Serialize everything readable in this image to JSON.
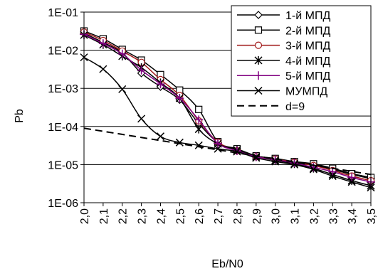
{
  "chart_data": {
    "type": "line",
    "title": "",
    "xlabel": "Eb/N0",
    "ylabel": "Pb",
    "yscale": "log",
    "ylim": [
      1e-06,
      0.1
    ],
    "xlim": [
      2.0,
      3.5
    ],
    "grid": "horizontal major lines",
    "legend_position": "top-right",
    "x": [
      2.0,
      2.1,
      2.2,
      2.3,
      2.4,
      2.5,
      2.6,
      2.7,
      2.8,
      2.9,
      3.0,
      3.1,
      3.2,
      3.3,
      3.4,
      3.5
    ],
    "x_tick_labels": [
      "2,0",
      "2,1",
      "2,2",
      "2,3",
      "2,4",
      "2,5",
      "2,6",
      "2,7",
      "2,8",
      "2,9",
      "3,0",
      "3,1",
      "3,2",
      "3,3",
      "3,4",
      "3,5"
    ],
    "y_tick_labels": [
      "1E-01",
      "1E-02",
      "1E-03",
      "1E-04",
      "1E-05",
      "1E-06"
    ],
    "series": [
      {
        "name": "1-й МПД",
        "marker": "diamond",
        "color": "#000000",
        "dash": "solid",
        "values": [
          0.028,
          0.016,
          0.0085,
          0.0025,
          0.0011,
          0.0005,
          0.00012,
          3.8e-05,
          2.4e-05,
          1.6e-05,
          1.4e-05,
          1.15e-05,
          1e-05,
          7.5e-06,
          5.5e-06,
          4.3e-06
        ]
      },
      {
        "name": "2-й МПД",
        "marker": "square",
        "color": "#000000",
        "dash": "solid",
        "values": [
          0.032,
          0.02,
          0.0105,
          0.0055,
          0.0023,
          0.0009,
          0.00028,
          4e-05,
          2.6e-05,
          1.7e-05,
          1.45e-05,
          1.2e-05,
          1.05e-05,
          8e-06,
          5.8e-06,
          4.6e-06
        ]
      },
      {
        "name": "3-й МПД",
        "marker": "circle",
        "color": "#a01818",
        "dash": "solid",
        "values": [
          0.03,
          0.018,
          0.0095,
          0.0048,
          0.0017,
          0.00065,
          0.00014,
          3.9e-05,
          2.3e-05,
          1.6e-05,
          1.4e-05,
          1.15e-05,
          9.5e-06,
          7e-06,
          5e-06,
          3.8e-06
        ]
      },
      {
        "name": "4-й МПД",
        "marker": "star",
        "color": "#000000",
        "dash": "solid",
        "values": [
          0.025,
          0.014,
          0.007,
          0.0035,
          0.0014,
          0.00055,
          8.5e-05,
          3.5e-05,
          2.4e-05,
          1.6e-05,
          1.3e-05,
          1.05e-05,
          8e-06,
          5.5e-06,
          3.8e-06,
          2.8e-06
        ]
      },
      {
        "name": "5-й МПД",
        "marker": "plus",
        "color": "#800080",
        "dash": "solid",
        "values": [
          0.026,
          0.015,
          0.008,
          0.003,
          0.0013,
          0.00055,
          0.00015,
          3.6e-05,
          2.3e-05,
          1.6e-05,
          1.35e-05,
          1.1e-05,
          8.5e-06,
          6.5e-06,
          4.6e-06,
          3.5e-06
        ]
      },
      {
        "name": "МУМПД",
        "marker": "cross",
        "color": "#000000",
        "dash": "solid",
        "values": [
          0.0065,
          0.0032,
          0.00095,
          0.00016,
          5.5e-05,
          3.8e-05,
          3.2e-05,
          2.6e-05,
          2.2e-05,
          1.5e-05,
          1.2e-05,
          1e-05,
          7.5e-06,
          5e-06,
          3.5e-06,
          2.5e-06
        ]
      },
      {
        "name": "d=9",
        "marker": "none",
        "color": "#000000",
        "dash": "dashed",
        "values": [
          9e-05,
          7.6e-05,
          6.4e-05,
          5.4e-05,
          4.5e-05,
          3.8e-05,
          3.2e-05,
          2.7e-05,
          2.2e-05,
          1.85e-05,
          1.55e-05,
          1.3e-05,
          1.05e-05,
          8.5e-06,
          6.8e-06,
          5.5e-06
        ]
      }
    ]
  }
}
